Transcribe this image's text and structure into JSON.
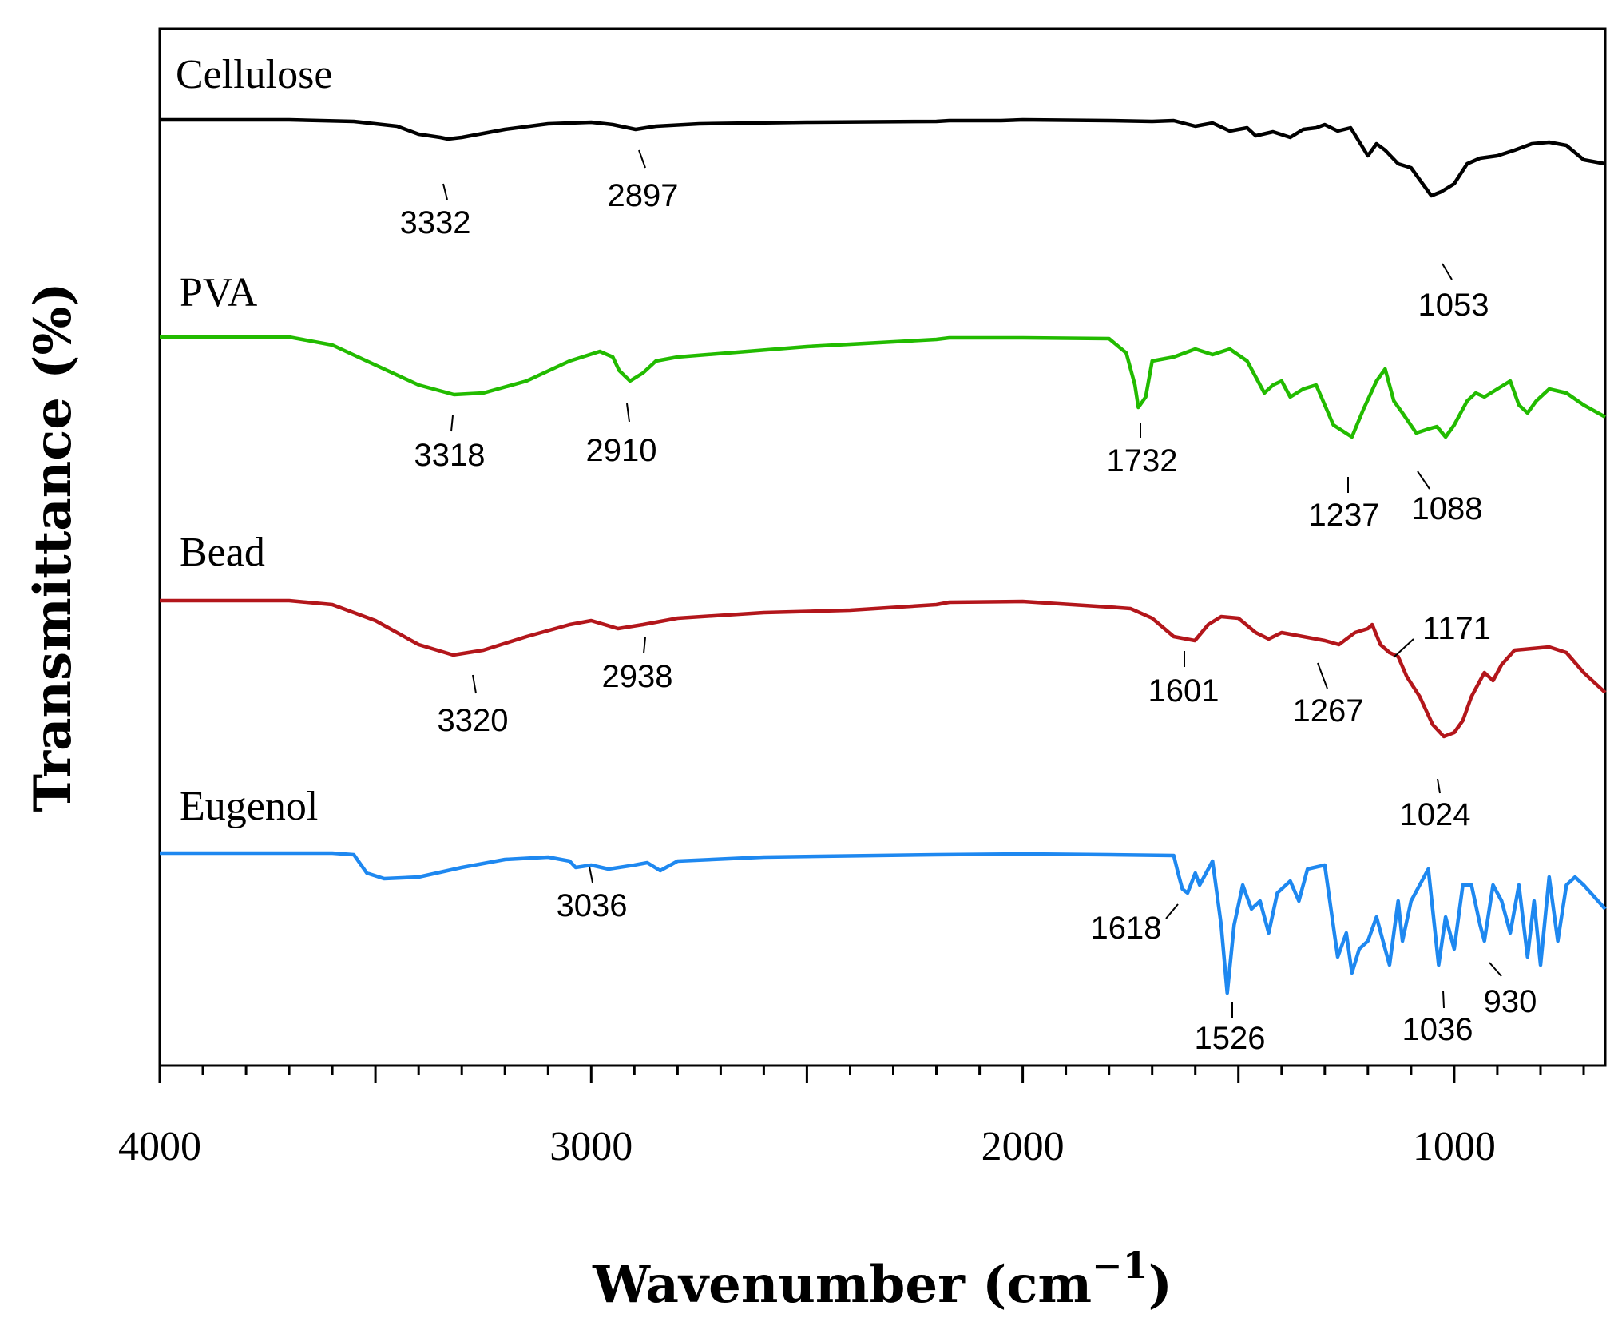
{
  "chart_data": {
    "type": "line",
    "xlabel": "Wavenumber (cm",
    "xlabel_superscript": "−1",
    "xlabel_close": ")",
    "ylabel": "Transmittance (%)",
    "xlim": [
      4000,
      650
    ],
    "x_reversed": true,
    "xticks": [
      4000,
      3000,
      2000,
      1000
    ],
    "xtick_labels": [
      "4000",
      "3000",
      "2000",
      "1000"
    ],
    "grid": false,
    "series": [
      {
        "name": "Cellulose",
        "color": "#000000",
        "baseline_offset": 0,
        "points": [
          [
            4000,
            0
          ],
          [
            3700,
            0
          ],
          [
            3550,
            -2
          ],
          [
            3450,
            -8
          ],
          [
            3400,
            -18
          ],
          [
            3350,
            -22
          ],
          [
            3332,
            -24
          ],
          [
            3300,
            -22
          ],
          [
            3200,
            -12
          ],
          [
            3100,
            -5
          ],
          [
            3000,
            -3
          ],
          [
            2950,
            -6
          ],
          [
            2897,
            -12
          ],
          [
            2850,
            -8
          ],
          [
            2750,
            -5
          ],
          [
            2500,
            -3
          ],
          [
            2200,
            -2
          ],
          [
            2170,
            -1
          ],
          [
            2050,
            -1
          ],
          [
            2000,
            0
          ],
          [
            1800,
            -1
          ],
          [
            1700,
            -2
          ],
          [
            1650,
            -1
          ],
          [
            1600,
            -8
          ],
          [
            1560,
            -4
          ],
          [
            1520,
            -14
          ],
          [
            1480,
            -10
          ],
          [
            1460,
            -20
          ],
          [
            1420,
            -15
          ],
          [
            1380,
            -22
          ],
          [
            1350,
            -12
          ],
          [
            1320,
            -10
          ],
          [
            1300,
            -6
          ],
          [
            1270,
            -14
          ],
          [
            1240,
            -10
          ],
          [
            1200,
            -45
          ],
          [
            1180,
            -30
          ],
          [
            1160,
            -38
          ],
          [
            1130,
            -55
          ],
          [
            1100,
            -60
          ],
          [
            1080,
            -75
          ],
          [
            1053,
            -95
          ],
          [
            1030,
            -90
          ],
          [
            1000,
            -80
          ],
          [
            970,
            -55
          ],
          [
            940,
            -48
          ],
          [
            900,
            -45
          ],
          [
            860,
            -38
          ],
          [
            820,
            -30
          ],
          [
            780,
            -28
          ],
          [
            740,
            -32
          ],
          [
            700,
            -50
          ],
          [
            650,
            -55
          ]
        ]
      },
      {
        "name": "PVA",
        "color": "#22bb00",
        "baseline_offset": 0,
        "points": [
          [
            4000,
            0
          ],
          [
            3700,
            0
          ],
          [
            3600,
            -10
          ],
          [
            3500,
            -35
          ],
          [
            3400,
            -60
          ],
          [
            3318,
            -72
          ],
          [
            3250,
            -70
          ],
          [
            3150,
            -55
          ],
          [
            3050,
            -30
          ],
          [
            2980,
            -18
          ],
          [
            2950,
            -25
          ],
          [
            2935,
            -42
          ],
          [
            2910,
            -55
          ],
          [
            2880,
            -45
          ],
          [
            2850,
            -30
          ],
          [
            2800,
            -25
          ],
          [
            2500,
            -12
          ],
          [
            2200,
            -3
          ],
          [
            2170,
            -1
          ],
          [
            2000,
            -1
          ],
          [
            1800,
            -2
          ],
          [
            1760,
            -20
          ],
          [
            1740,
            -60
          ],
          [
            1732,
            -88
          ],
          [
            1715,
            -75
          ],
          [
            1700,
            -30
          ],
          [
            1650,
            -25
          ],
          [
            1600,
            -15
          ],
          [
            1560,
            -22
          ],
          [
            1520,
            -15
          ],
          [
            1480,
            -30
          ],
          [
            1440,
            -70
          ],
          [
            1420,
            -60
          ],
          [
            1400,
            -55
          ],
          [
            1380,
            -75
          ],
          [
            1350,
            -65
          ],
          [
            1320,
            -60
          ],
          [
            1280,
            -110
          ],
          [
            1237,
            -125
          ],
          [
            1210,
            -90
          ],
          [
            1180,
            -55
          ],
          [
            1160,
            -40
          ],
          [
            1140,
            -80
          ],
          [
            1120,
            -95
          ],
          [
            1088,
            -120
          ],
          [
            1060,
            -115
          ],
          [
            1040,
            -112
          ],
          [
            1020,
            -125
          ],
          [
            1000,
            -110
          ],
          [
            970,
            -80
          ],
          [
            950,
            -70
          ],
          [
            930,
            -75
          ],
          [
            900,
            -65
          ],
          [
            870,
            -55
          ],
          [
            850,
            -85
          ],
          [
            830,
            -95
          ],
          [
            810,
            -80
          ],
          [
            780,
            -65
          ],
          [
            740,
            -70
          ],
          [
            700,
            -85
          ],
          [
            650,
            -100
          ]
        ]
      },
      {
        "name": "Bead",
        "color": "#b3161b",
        "baseline_offset": 0,
        "points": [
          [
            4000,
            0
          ],
          [
            3700,
            0
          ],
          [
            3600,
            -5
          ],
          [
            3500,
            -25
          ],
          [
            3400,
            -55
          ],
          [
            3320,
            -68
          ],
          [
            3250,
            -62
          ],
          [
            3150,
            -45
          ],
          [
            3050,
            -30
          ],
          [
            3000,
            -25
          ],
          [
            2938,
            -35
          ],
          [
            2880,
            -30
          ],
          [
            2800,
            -22
          ],
          [
            2600,
            -15
          ],
          [
            2400,
            -12
          ],
          [
            2200,
            -5
          ],
          [
            2170,
            -2
          ],
          [
            2000,
            -1
          ],
          [
            1800,
            -8
          ],
          [
            1750,
            -10
          ],
          [
            1700,
            -22
          ],
          [
            1650,
            -45
          ],
          [
            1601,
            -50
          ],
          [
            1570,
            -30
          ],
          [
            1540,
            -20
          ],
          [
            1500,
            -22
          ],
          [
            1460,
            -40
          ],
          [
            1430,
            -48
          ],
          [
            1400,
            -40
          ],
          [
            1350,
            -45
          ],
          [
            1300,
            -50
          ],
          [
            1267,
            -55
          ],
          [
            1230,
            -40
          ],
          [
            1200,
            -35
          ],
          [
            1190,
            -30
          ],
          [
            1171,
            -55
          ],
          [
            1150,
            -65
          ],
          [
            1130,
            -70
          ],
          [
            1110,
            -95
          ],
          [
            1080,
            -120
          ],
          [
            1050,
            -155
          ],
          [
            1024,
            -170
          ],
          [
            1000,
            -165
          ],
          [
            980,
            -150
          ],
          [
            960,
            -120
          ],
          [
            930,
            -90
          ],
          [
            910,
            -100
          ],
          [
            890,
            -80
          ],
          [
            860,
            -62
          ],
          [
            820,
            -60
          ],
          [
            780,
            -58
          ],
          [
            740,
            -65
          ],
          [
            700,
            -90
          ],
          [
            650,
            -115
          ]
        ]
      },
      {
        "name": "Eugenol",
        "color": "#1e88f0",
        "baseline_offset": 0,
        "points": [
          [
            4000,
            0
          ],
          [
            3600,
            0
          ],
          [
            3550,
            -2
          ],
          [
            3520,
            -25
          ],
          [
            3480,
            -32
          ],
          [
            3400,
            -30
          ],
          [
            3300,
            -18
          ],
          [
            3200,
            -8
          ],
          [
            3100,
            -5
          ],
          [
            3050,
            -10
          ],
          [
            3036,
            -18
          ],
          [
            3000,
            -15
          ],
          [
            2960,
            -20
          ],
          [
            2900,
            -15
          ],
          [
            2870,
            -12
          ],
          [
            2840,
            -22
          ],
          [
            2800,
            -10
          ],
          [
            2600,
            -5
          ],
          [
            2200,
            -2
          ],
          [
            2000,
            -1
          ],
          [
            1800,
            -2
          ],
          [
            1650,
            -3
          ],
          [
            1640,
            -25
          ],
          [
            1630,
            -45
          ],
          [
            1618,
            -50
          ],
          [
            1600,
            -25
          ],
          [
            1590,
            -40
          ],
          [
            1560,
            -10
          ],
          [
            1540,
            -90
          ],
          [
            1526,
            -175
          ],
          [
            1510,
            -90
          ],
          [
            1490,
            -40
          ],
          [
            1470,
            -70
          ],
          [
            1450,
            -60
          ],
          [
            1430,
            -100
          ],
          [
            1410,
            -50
          ],
          [
            1380,
            -35
          ],
          [
            1360,
            -60
          ],
          [
            1340,
            -20
          ],
          [
            1300,
            -15
          ],
          [
            1270,
            -130
          ],
          [
            1250,
            -100
          ],
          [
            1237,
            -150
          ],
          [
            1220,
            -120
          ],
          [
            1200,
            -110
          ],
          [
            1180,
            -80
          ],
          [
            1160,
            -120
          ],
          [
            1150,
            -140
          ],
          [
            1130,
            -60
          ],
          [
            1120,
            -110
          ],
          [
            1100,
            -60
          ],
          [
            1060,
            -20
          ],
          [
            1036,
            -140
          ],
          [
            1020,
            -80
          ],
          [
            1000,
            -120
          ],
          [
            980,
            -40
          ],
          [
            960,
            -40
          ],
          [
            940,
            -90
          ],
          [
            930,
            -110
          ],
          [
            910,
            -40
          ],
          [
            890,
            -60
          ],
          [
            870,
            -100
          ],
          [
            850,
            -40
          ],
          [
            830,
            -130
          ],
          [
            815,
            -60
          ],
          [
            800,
            -140
          ],
          [
            780,
            -30
          ],
          [
            760,
            -110
          ],
          [
            740,
            -40
          ],
          [
            720,
            -30
          ],
          [
            700,
            -40
          ],
          [
            650,
            -70
          ]
        ]
      }
    ],
    "peak_annotations": [
      {
        "series": "Cellulose",
        "label": "3332"
      },
      {
        "series": "Cellulose",
        "label": "2897"
      },
      {
        "series": "Cellulose",
        "label": "1053"
      },
      {
        "series": "PVA",
        "label": "3318"
      },
      {
        "series": "PVA",
        "label": "2910"
      },
      {
        "series": "PVA",
        "label": "1732"
      },
      {
        "series": "PVA",
        "label": "1237"
      },
      {
        "series": "PVA",
        "label": "1088"
      },
      {
        "series": "Bead",
        "label": "3320"
      },
      {
        "series": "Bead",
        "label": "2938"
      },
      {
        "series": "Bead",
        "label": "1601"
      },
      {
        "series": "Bead",
        "label": "1267"
      },
      {
        "series": "Bead",
        "label": "1171"
      },
      {
        "series": "Bead",
        "label": "1024"
      },
      {
        "series": "Eugenol",
        "label": "3036"
      },
      {
        "series": "Eugenol",
        "label": "1618"
      },
      {
        "series": "Eugenol",
        "label": "1526"
      },
      {
        "series": "Eugenol",
        "label": "1036"
      },
      {
        "series": "Eugenol",
        "label": "930"
      }
    ]
  }
}
